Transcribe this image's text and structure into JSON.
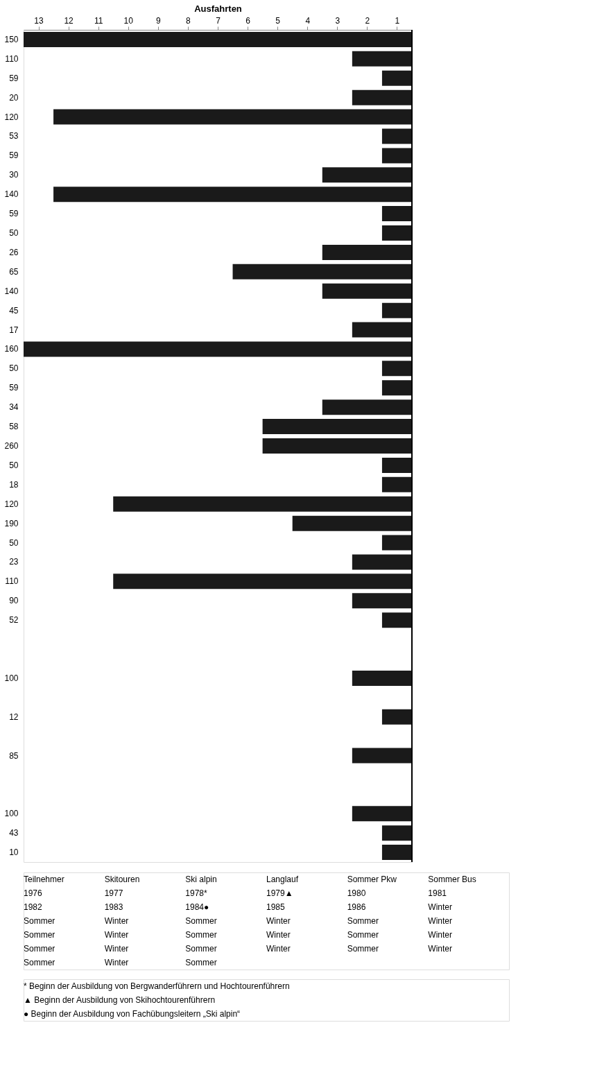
{
  "chart_data": {
    "type": "bar",
    "orientation": "horizontal",
    "xlabel": "Ausfahrten",
    "color": "#1a1a1a",
    "ref_lines": [
      {
        "axis": "x",
        "value": 0,
        "color": "#000000"
      }
    ],
    "categories": [
      "150",
      "110",
      "59",
      "20",
      "120",
      "53",
      "59",
      "30",
      "140",
      "59",
      "50",
      "26",
      "65",
      "140",
      "45",
      "17",
      "160",
      "50",
      "59",
      "34",
      "58",
      "260",
      "50",
      "18",
      "120",
      "190",
      "50",
      "23",
      "110",
      "90",
      "52",
      null,
      null,
      "100",
      null,
      "12",
      null,
      "85",
      null,
      null,
      "100",
      "43",
      "10"
    ],
    "values": [
      13,
      2,
      1,
      2,
      12,
      1,
      1,
      3,
      12,
      1,
      1,
      3,
      6,
      3,
      1,
      2,
      13,
      1,
      1,
      3,
      5,
      5,
      1,
      1,
      10,
      4,
      1,
      2,
      10,
      2,
      1,
      null,
      null,
      2,
      null,
      1,
      null,
      2,
      null,
      null,
      2,
      1,
      1
    ],
    "xlim": [
      13,
      0
    ],
    "xticks": [
      {
        "value": 0.5,
        "label": "1"
      },
      {
        "value": 1.5,
        "label": "2"
      },
      {
        "value": 2.5,
        "label": "3"
      },
      {
        "value": 3.5,
        "label": "4"
      },
      {
        "value": 4.5,
        "label": "5"
      },
      {
        "value": 5.5,
        "label": "6"
      },
      {
        "value": 6.5,
        "label": "7"
      },
      {
        "value": 7.5,
        "label": "8"
      },
      {
        "value": 8.5,
        "label": "9"
      },
      {
        "value": 9.5,
        "label": "10"
      },
      {
        "value": 10.5,
        "label": "11"
      },
      {
        "value": 11.5,
        "label": "12"
      },
      {
        "value": 12.5,
        "label": "13"
      }
    ],
    "annotations": [
      "Teilnehmer",
      "Skitouren",
      "Ski alpin",
      "Langlauf",
      "Sommer Pkw",
      "Sommer Bus",
      "1976",
      "1977",
      "1978*",
      "1979▲",
      "1980",
      "1981",
      "1982",
      "1983",
      "1984●",
      "1985",
      "1986",
      "Winter",
      "Sommer",
      "Winter",
      "Sommer",
      "Winter",
      "Sommer",
      "Winter",
      "Sommer",
      "Winter",
      "Sommer",
      "Winter",
      "Sommer",
      "Winter",
      "Sommer",
      "Winter",
      "Sommer",
      "Winter",
      "Sommer",
      "Winter",
      "Sommer",
      "Winter",
      "Sommer",
      "* Beginn der Ausbildung von Bergwanderführern und Hochtourenführern",
      "▲ Beginn der Ausbildung von Skihochtourenführern",
      "● Beginn der Ausbildung von Fachübungsleitern „Ski alpin“"
    ]
  }
}
